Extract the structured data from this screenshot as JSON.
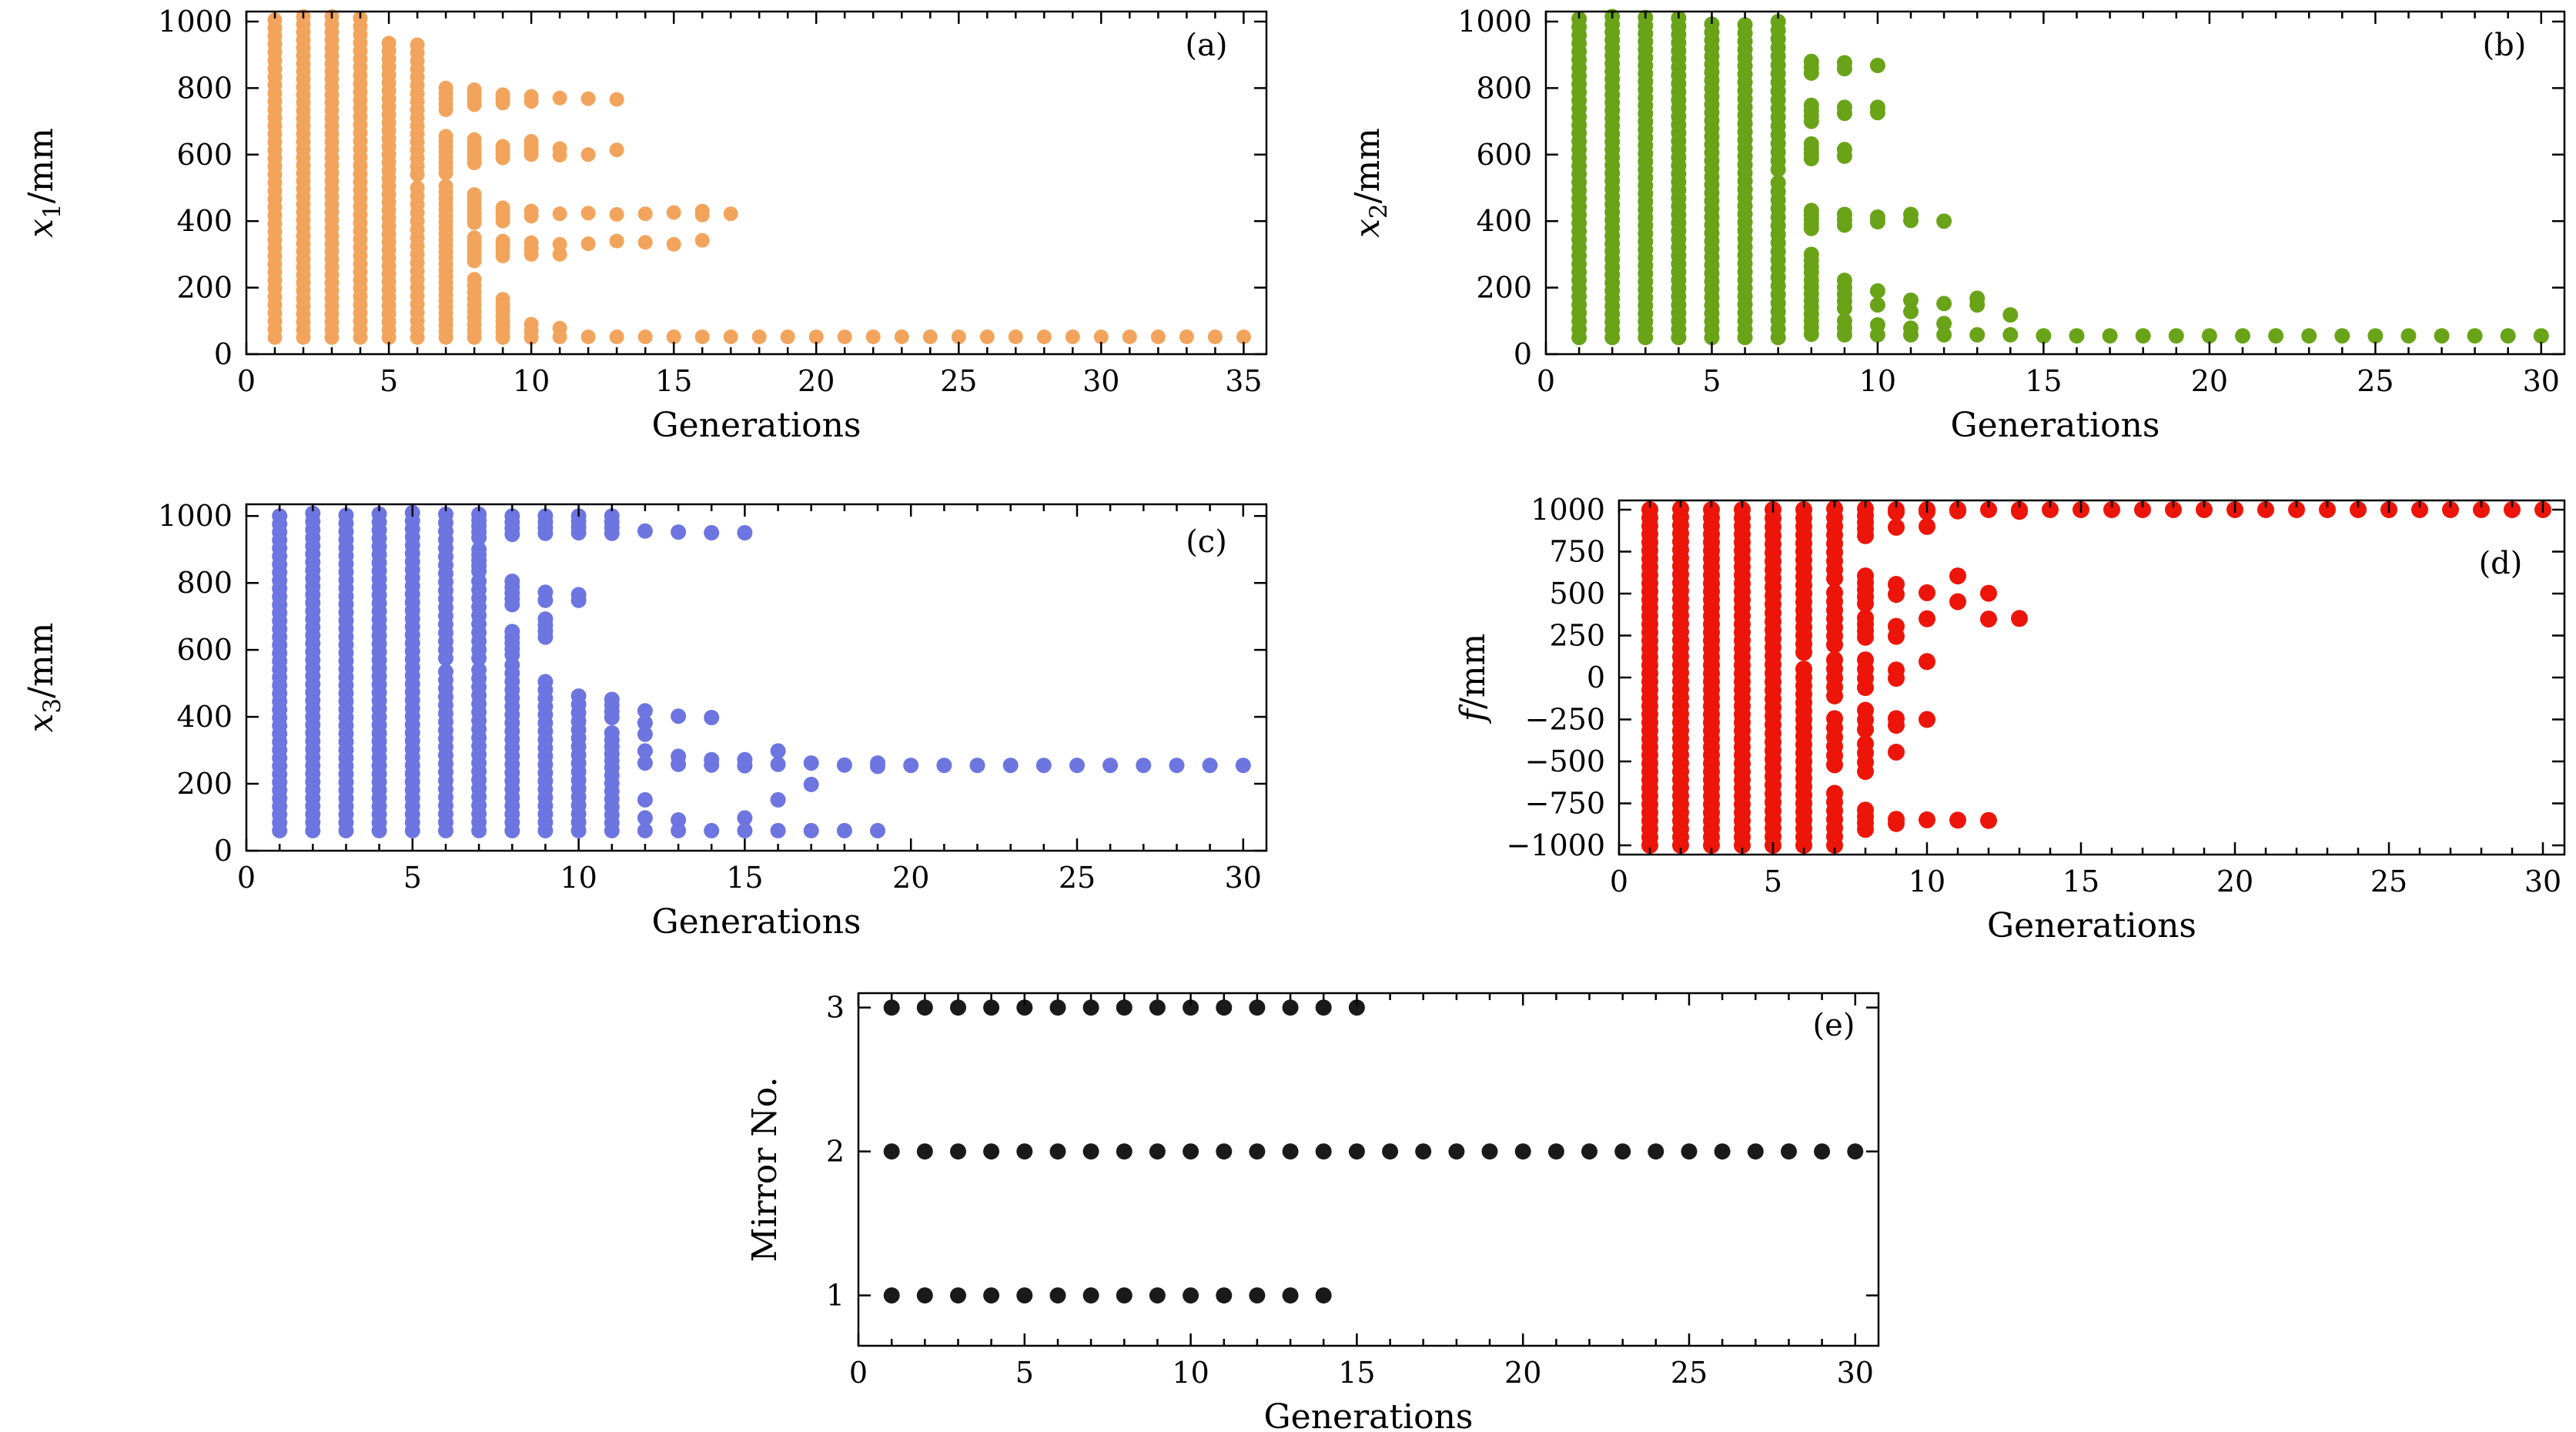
{
  "figure": {
    "background": "#ffffff",
    "description_visible_text": [
      "Generations",
      "Mirror No.",
      "(a)",
      "(b)",
      "(c)",
      "(d)",
      "(e)"
    ]
  },
  "chart_data": [
    {
      "id": "a",
      "type": "scatter",
      "panel_label": "(a)",
      "color": "#F2A45C",
      "marker_r": 9.5,
      "xlabel": "Generations",
      "ylabel_parts": [
        {
          "t": "x",
          "s": "i"
        },
        {
          "t": "1",
          "s": "sub"
        },
        {
          "t": "/mm",
          "s": "n"
        }
      ],
      "xlim": [
        0,
        35.8
      ],
      "ylim": [
        0,
        1030
      ],
      "xticks": [
        0,
        5,
        10,
        15,
        20,
        25,
        30,
        35
      ],
      "yticks": [
        0,
        200,
        400,
        600,
        800,
        1000
      ],
      "grid": false,
      "columns": [
        {
          "x": 1,
          "spans": [
            [
              50,
              1005,
              40
            ]
          ]
        },
        {
          "x": 2,
          "spans": [
            [
              50,
              1015,
              42
            ]
          ]
        },
        {
          "x": 3,
          "spans": [
            [
              50,
              1015,
              42
            ]
          ]
        },
        {
          "x": 4,
          "spans": [
            [
              50,
              1010,
              40
            ]
          ]
        },
        {
          "x": 5,
          "spans": [
            [
              50,
              935,
              38
            ]
          ]
        },
        {
          "x": 6,
          "spans": [
            [
              540,
              930,
              17
            ],
            [
              50,
              500,
              19
            ]
          ]
        },
        {
          "x": 7,
          "spans": [
            [
              735,
              800,
              5
            ],
            [
              545,
              655,
              8
            ],
            [
              290,
              505,
              13
            ],
            [
              50,
              270,
              13
            ]
          ]
        },
        {
          "x": 8,
          "spans": [
            [
              750,
              795,
              4
            ],
            [
              575,
              645,
              6
            ],
            [
              395,
              480,
              7
            ],
            [
              280,
              350,
              6
            ],
            [
              50,
              225,
              10
            ]
          ]
        },
        {
          "x": 9,
          "spans": [
            [
              755,
              780,
              3
            ],
            [
              590,
              625,
              4
            ],
            [
              400,
              440,
              4
            ],
            [
              295,
              340,
              4
            ],
            [
              50,
              165,
              8
            ]
          ]
        },
        {
          "x": 10,
          "spans": [
            [
              760,
              775,
              2
            ],
            [
              600,
              640,
              4
            ],
            [
              415,
              430,
              2
            ],
            [
              300,
              335,
              3
            ],
            [
              50,
              90,
              3
            ]
          ]
        },
        {
          "x": 11,
          "points": [
            770,
            618,
            598,
            422,
            330,
            300,
            52,
            78
          ]
        },
        {
          "x": 12,
          "points": [
            768,
            600,
            424,
            332,
            52
          ]
        },
        {
          "x": 13,
          "points": [
            766,
            614,
            420,
            340,
            52
          ]
        },
        {
          "x": 14,
          "points": [
            422,
            336,
            52
          ]
        },
        {
          "x": 15,
          "points": [
            426,
            330,
            52
          ]
        },
        {
          "x": 16,
          "points": [
            430,
            418,
            342,
            52
          ]
        },
        {
          "x": 17,
          "points": [
            422,
            52
          ]
        }
      ],
      "rows": [
        {
          "y": 52,
          "from": 18,
          "to": 35
        }
      ]
    },
    {
      "id": "b",
      "type": "scatter",
      "panel_label": "(b)",
      "color": "#69A318",
      "marker_r": 10,
      "xlabel": "Generations",
      "ylabel_parts": [
        {
          "t": "x",
          "s": "i"
        },
        {
          "t": "2",
          "s": "sub"
        },
        {
          "t": "/mm",
          "s": "n"
        }
      ],
      "xlim": [
        0,
        30.7
      ],
      "ylim": [
        0,
        1030
      ],
      "xticks": [
        0,
        5,
        10,
        15,
        20,
        25,
        30
      ],
      "yticks": [
        0,
        200,
        400,
        600,
        800,
        1000
      ],
      "grid": false,
      "columns": [
        {
          "x": 1,
          "spans": [
            [
              50,
              1008,
              40
            ]
          ]
        },
        {
          "x": 2,
          "spans": [
            [
              50,
              1015,
              42
            ]
          ]
        },
        {
          "x": 3,
          "spans": [
            [
              50,
              1012,
              41
            ]
          ]
        },
        {
          "x": 4,
          "spans": [
            [
              50,
              1010,
              40
            ]
          ]
        },
        {
          "x": 5,
          "spans": [
            [
              50,
              992,
              40
            ]
          ]
        },
        {
          "x": 6,
          "spans": [
            [
              50,
              990,
              39
            ]
          ]
        },
        {
          "x": 7,
          "spans": [
            [
              555,
              1000,
              18
            ],
            [
              50,
              515,
              19
            ]
          ]
        },
        {
          "x": 8,
          "spans": [
            [
              845,
              880,
              3
            ],
            [
              700,
              748,
              4
            ],
            [
              588,
              632,
              4
            ],
            [
              378,
              432,
              5
            ],
            [
              245,
              300,
              4
            ],
            [
              60,
              222,
              9
            ]
          ]
        },
        {
          "x": 9,
          "spans": [
            [
              858,
              876,
              2
            ],
            [
              724,
              742,
              2
            ],
            [
              595,
              615,
              2
            ],
            [
              388,
              420,
              3
            ],
            [
              138,
              222,
              5
            ],
            [
              58,
              100,
              3
            ]
          ]
        },
        {
          "x": 10,
          "points": [
            868,
            742,
            726,
            412,
            398,
            190,
            148,
            88,
            58
          ]
        },
        {
          "x": 11,
          "points": [
            420,
            402,
            162,
            128,
            78,
            58
          ]
        },
        {
          "x": 12,
          "points": [
            400,
            152,
            92,
            58
          ]
        },
        {
          "x": 13,
          "points": [
            168,
            148,
            58
          ]
        },
        {
          "x": 14,
          "points": [
            118,
            58
          ]
        }
      ],
      "rows": [
        {
          "y": 55,
          "from": 15,
          "to": 30
        }
      ]
    },
    {
      "id": "c",
      "type": "scatter",
      "panel_label": "(c)",
      "color": "#6D75E0",
      "marker_r": 10,
      "xlabel": "Generations",
      "ylabel_parts": [
        {
          "t": "x",
          "s": "i"
        },
        {
          "t": "3",
          "s": "sub"
        },
        {
          "t": "/mm",
          "s": "n"
        }
      ],
      "xlim": [
        0,
        30.7
      ],
      "ylim": [
        0,
        1035
      ],
      "xticks": [
        0,
        5,
        10,
        15,
        20,
        25,
        30
      ],
      "yticks": [
        0,
        200,
        400,
        600,
        800,
        1000
      ],
      "grid": false,
      "columns": [
        {
          "x": 1,
          "spans": [
            [
              60,
              1000,
              40
            ]
          ]
        },
        {
          "x": 2,
          "spans": [
            [
              60,
              1008,
              40
            ]
          ]
        },
        {
          "x": 3,
          "spans": [
            [
              60,
              1002,
              40
            ]
          ]
        },
        {
          "x": 4,
          "spans": [
            [
              60,
              1006,
              40
            ]
          ]
        },
        {
          "x": 5,
          "spans": [
            [
              60,
              1010,
              40
            ]
          ]
        },
        {
          "x": 6,
          "spans": [
            [
              575,
              1005,
              18
            ],
            [
              60,
              535,
              20
            ]
          ]
        },
        {
          "x": 7,
          "spans": [
            [
              935,
              1005,
              5
            ],
            [
              835,
              900,
              5
            ],
            [
              575,
              805,
              10
            ],
            [
              60,
              540,
              20
            ]
          ]
        },
        {
          "x": 8,
          "spans": [
            [
              945,
              1000,
              4
            ],
            [
              735,
              805,
              5
            ],
            [
              585,
              655,
              5
            ],
            [
              60,
              555,
              21
            ]
          ]
        },
        {
          "x": 9,
          "spans": [
            [
              948,
              1000,
              4
            ],
            [
              748,
              772,
              2
            ],
            [
              638,
              692,
              4
            ],
            [
              60,
              505,
              19
            ]
          ]
        },
        {
          "x": 10,
          "spans": [
            [
              950,
              1000,
              4
            ],
            [
              748,
              765,
              2
            ],
            [
              60,
              462,
              17
            ]
          ]
        },
        {
          "x": 11,
          "spans": [
            [
              948,
              1000,
              4
            ],
            [
              398,
              452,
              4
            ],
            [
              248,
              352,
              6
            ],
            [
              60,
              225,
              8
            ]
          ]
        },
        {
          "x": 12,
          "points": [
            955,
            418,
            382,
            348,
            298,
            262,
            152,
            98,
            60
          ]
        },
        {
          "x": 13,
          "points": [
            952,
            402,
            282,
            258,
            92,
            60
          ]
        },
        {
          "x": 14,
          "points": [
            950,
            398,
            272,
            256,
            60
          ]
        },
        {
          "x": 15,
          "points": [
            950,
            272,
            254,
            98,
            60
          ]
        },
        {
          "x": 16,
          "points": [
            298,
            258,
            152,
            60
          ]
        },
        {
          "x": 17,
          "points": [
            262,
            198,
            60
          ]
        },
        {
          "x": 18,
          "points": [
            256,
            60
          ]
        },
        {
          "x": 19,
          "points": [
            262,
            252,
            60
          ]
        }
      ],
      "rows": [
        {
          "y": 255,
          "from": 20,
          "to": 30
        }
      ]
    },
    {
      "id": "d",
      "type": "scatter",
      "panel_label": "(d)",
      "color": "#ED1509",
      "marker_r": 11,
      "xlabel": "Generations",
      "ylabel_parts": [
        {
          "t": "f",
          "s": "i"
        },
        {
          "t": "/mm",
          "s": "n"
        }
      ],
      "xlim": [
        0,
        30.7
      ],
      "ylim": [
        -1055,
        1055
      ],
      "xticks": [
        0,
        5,
        10,
        15,
        20,
        25,
        30
      ],
      "yticks": [
        1000,
        750,
        500,
        250,
        0,
        -250,
        -500,
        -750,
        -1000
      ],
      "grid": false,
      "columns": [
        {
          "x": 1,
          "spans": [
            [
              -1000,
              1000,
              42
            ]
          ]
        },
        {
          "x": 2,
          "spans": [
            [
              -1000,
              1005,
              42
            ]
          ]
        },
        {
          "x": 3,
          "spans": [
            [
              -1000,
              1000,
              42
            ]
          ]
        },
        {
          "x": 4,
          "spans": [
            [
              -1000,
              1000,
              42
            ]
          ]
        },
        {
          "x": 5,
          "spans": [
            [
              -1000,
              1000,
              40
            ]
          ]
        },
        {
          "x": 6,
          "spans": [
            [
              150,
              1000,
              18
            ],
            [
              -1000,
              50,
              22
            ]
          ]
        },
        {
          "x": 7,
          "spans": [
            [
              590,
              1005,
              9
            ],
            [
              195,
              505,
              7
            ],
            [
              -110,
              105,
              5
            ],
            [
              -520,
              -245,
              6
            ],
            [
              -1000,
              -690,
              7
            ]
          ]
        },
        {
          "x": 8,
          "spans": [
            [
              845,
              1005,
              5
            ],
            [
              440,
              605,
              5
            ],
            [
              240,
              355,
              4
            ],
            [
              -60,
              105,
              4
            ],
            [
              -310,
              -195,
              3
            ],
            [
              -560,
              -395,
              4
            ],
            [
              -905,
              -790,
              4
            ]
          ]
        },
        {
          "x": 9,
          "points": [
            1000,
            985,
            895,
            555,
            495,
            305,
            245,
            45,
            -5,
            -245,
            -285,
            -445,
            -845,
            -870
          ]
        },
        {
          "x": 10,
          "points": [
            1000,
            988,
            900,
            505,
            350,
            95,
            -250,
            -848
          ]
        },
        {
          "x": 11,
          "points": [
            1000,
            992,
            605,
            452,
            -850
          ]
        },
        {
          "x": 12,
          "points": [
            1000,
            502,
            348,
            -852
          ]
        },
        {
          "x": 13,
          "points": [
            1000,
            990,
            352
          ]
        }
      ],
      "rows": [
        {
          "y": 1000,
          "from": 14,
          "to": 30
        }
      ]
    },
    {
      "id": "e",
      "type": "scatter",
      "panel_label": "(e)",
      "color": "#1a1a1a",
      "marker_r": 10.5,
      "xlabel": "Generations",
      "ylabel_parts": [
        {
          "t": "Mirror No.",
          "s": "n"
        }
      ],
      "xlim": [
        0,
        30.7
      ],
      "ylim": [
        0.65,
        3.1
      ],
      "xticks": [
        0,
        5,
        10,
        15,
        20,
        25,
        30
      ],
      "yticks": [
        1,
        2,
        3
      ],
      "grid": false,
      "columns": [],
      "rows": [
        {
          "y": 3,
          "from": 1,
          "to": 15
        },
        {
          "y": 2,
          "from": 1,
          "to": 30
        },
        {
          "y": 1,
          "from": 1,
          "to": 14
        }
      ]
    }
  ]
}
